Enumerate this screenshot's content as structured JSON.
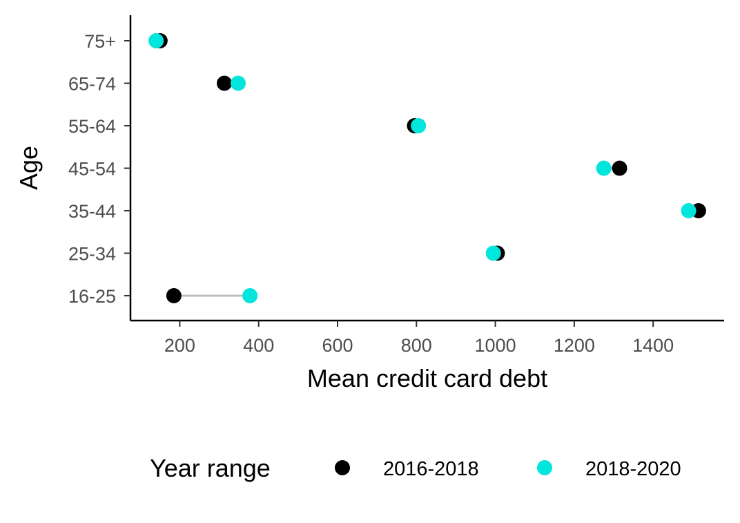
{
  "chart_data": {
    "type": "scatter",
    "subtype": "dumbbell",
    "title": "",
    "xlabel": "Mean credit card debt",
    "ylabel": "Age",
    "xlim": [
      75,
      1580
    ],
    "xticks": [
      200,
      400,
      600,
      800,
      1000,
      1200,
      1400
    ],
    "categories": [
      "16-25",
      "25-34",
      "35-44",
      "45-54",
      "55-64",
      "65-74",
      "75+"
    ],
    "series": [
      {
        "name": "2016-2018",
        "color": "#000000",
        "values": [
          185,
          1005,
          1515,
          1315,
          795,
          313,
          150
        ]
      },
      {
        "name": "2018-2020",
        "color": "#00E5DC",
        "values": [
          378,
          995,
          1490,
          1275,
          805,
          348,
          140
        ]
      }
    ],
    "connector_color": "#BFBFBF",
    "grid": false,
    "legend": {
      "title": "Year range",
      "position": "bottom"
    }
  }
}
